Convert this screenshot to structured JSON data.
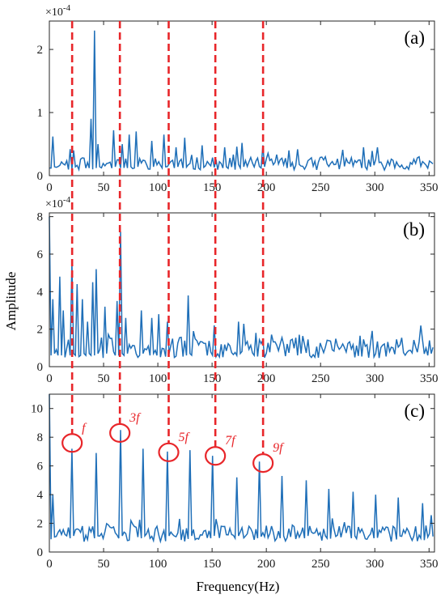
{
  "chart_data": {
    "type": "line",
    "xlabel": "Frequency(Hz)",
    "ylabel": "Amplitude",
    "colors": {
      "series": "#1f6fb8",
      "markers": "#e8262a",
      "axes": "#262626"
    },
    "marker_frequencies": [
      21,
      65,
      110,
      153,
      197
    ],
    "panels": [
      {
        "id": "a",
        "label": "(a)",
        "exponent": "×10-4",
        "xlim": [
          0,
          355
        ],
        "ylim": [
          0,
          2.45
        ],
        "xticks": [
          0,
          50,
          100,
          150,
          200,
          250,
          300,
          350
        ],
        "yticks": [
          0,
          1,
          2
        ],
        "peaks": [
          [
            0,
            2.45
          ],
          [
            2,
            0.4
          ],
          [
            4,
            0.62
          ],
          [
            20,
            0.42
          ],
          [
            22,
            0.4
          ],
          [
            38,
            0.9
          ],
          [
            41,
            2.3
          ],
          [
            45,
            0.5
          ],
          [
            60,
            0.72
          ],
          [
            67,
            0.5
          ],
          [
            74,
            0.65
          ],
          [
            80,
            0.7
          ],
          [
            95,
            0.55
          ],
          [
            105,
            0.65
          ],
          [
            117,
            0.45
          ],
          [
            125,
            0.6
          ],
          [
            140,
            0.48
          ],
          [
            162,
            0.45
          ],
          [
            177,
            0.52
          ],
          [
            196,
            0.48
          ],
          [
            220,
            0.4
          ],
          [
            290,
            0.45
          ]
        ],
        "base": 0.2,
        "noise": 0.2,
        "seed": 11
      },
      {
        "id": "b",
        "label": "(b)",
        "exponent": "×10-4",
        "xlim": [
          0,
          355
        ],
        "ylim": [
          0,
          8.2
        ],
        "xticks": [
          0,
          50,
          100,
          150,
          200,
          250,
          300,
          350
        ],
        "yticks": [
          0,
          2,
          4,
          6,
          8
        ],
        "peaks": [
          [
            0,
            8.0
          ],
          [
            4,
            3.6
          ],
          [
            9,
            4.8
          ],
          [
            13,
            3.0
          ],
          [
            21,
            5.6
          ],
          [
            26,
            4.4
          ],
          [
            31,
            3.6
          ],
          [
            36,
            2.4
          ],
          [
            40,
            4.5
          ],
          [
            44,
            5.2
          ],
          [
            52,
            3.2
          ],
          [
            62,
            3.5
          ],
          [
            65,
            7.2
          ],
          [
            70,
            2.6
          ],
          [
            85,
            3.0
          ],
          [
            95,
            2.6
          ],
          [
            100,
            2.8
          ],
          [
            108,
            2.4
          ],
          [
            128,
            3.8
          ],
          [
            152,
            2.2
          ],
          [
            175,
            2.4
          ],
          [
            191,
            1.8
          ],
          [
            230,
            1.7
          ],
          [
            350,
            1.4
          ]
        ],
        "base": 1.0,
        "noise": 1.1,
        "seed": 23
      },
      {
        "id": "c",
        "label": "(c)",
        "exponent": "",
        "xlim": [
          0,
          355
        ],
        "ylim": [
          0,
          11
        ],
        "xticks": [
          0,
          50,
          100,
          150,
          200,
          250,
          300,
          350
        ],
        "yticks": [
          0,
          2,
          4,
          6,
          8,
          10
        ],
        "peaks": [
          [
            0,
            11.0
          ],
          [
            4,
            4.0
          ],
          [
            21,
            7.2
          ],
          [
            43,
            6.9
          ],
          [
            65,
            8.5
          ],
          [
            86,
            7.2
          ],
          [
            108,
            7.0
          ],
          [
            129,
            7.1
          ],
          [
            150,
            6.7
          ],
          [
            172,
            5.2
          ],
          [
            194,
            6.3
          ],
          [
            215,
            5.3
          ],
          [
            237,
            5.0
          ],
          [
            258,
            4.4
          ],
          [
            280,
            4.2
          ],
          [
            301,
            4.0
          ],
          [
            322,
            3.8
          ],
          [
            344,
            3.4
          ]
        ],
        "base": 1.6,
        "noise": 1.1,
        "seed": 37
      }
    ],
    "annotations": [
      {
        "text": "f",
        "freq": 21,
        "y": 7.6
      },
      {
        "text": "3f",
        "freq": 65,
        "y": 8.3
      },
      {
        "text": "5f",
        "freq": 110,
        "y": 6.95
      },
      {
        "text": "7f",
        "freq": 153,
        "y": 6.7
      },
      {
        "text": "9f",
        "freq": 197,
        "y": 6.2
      }
    ]
  }
}
